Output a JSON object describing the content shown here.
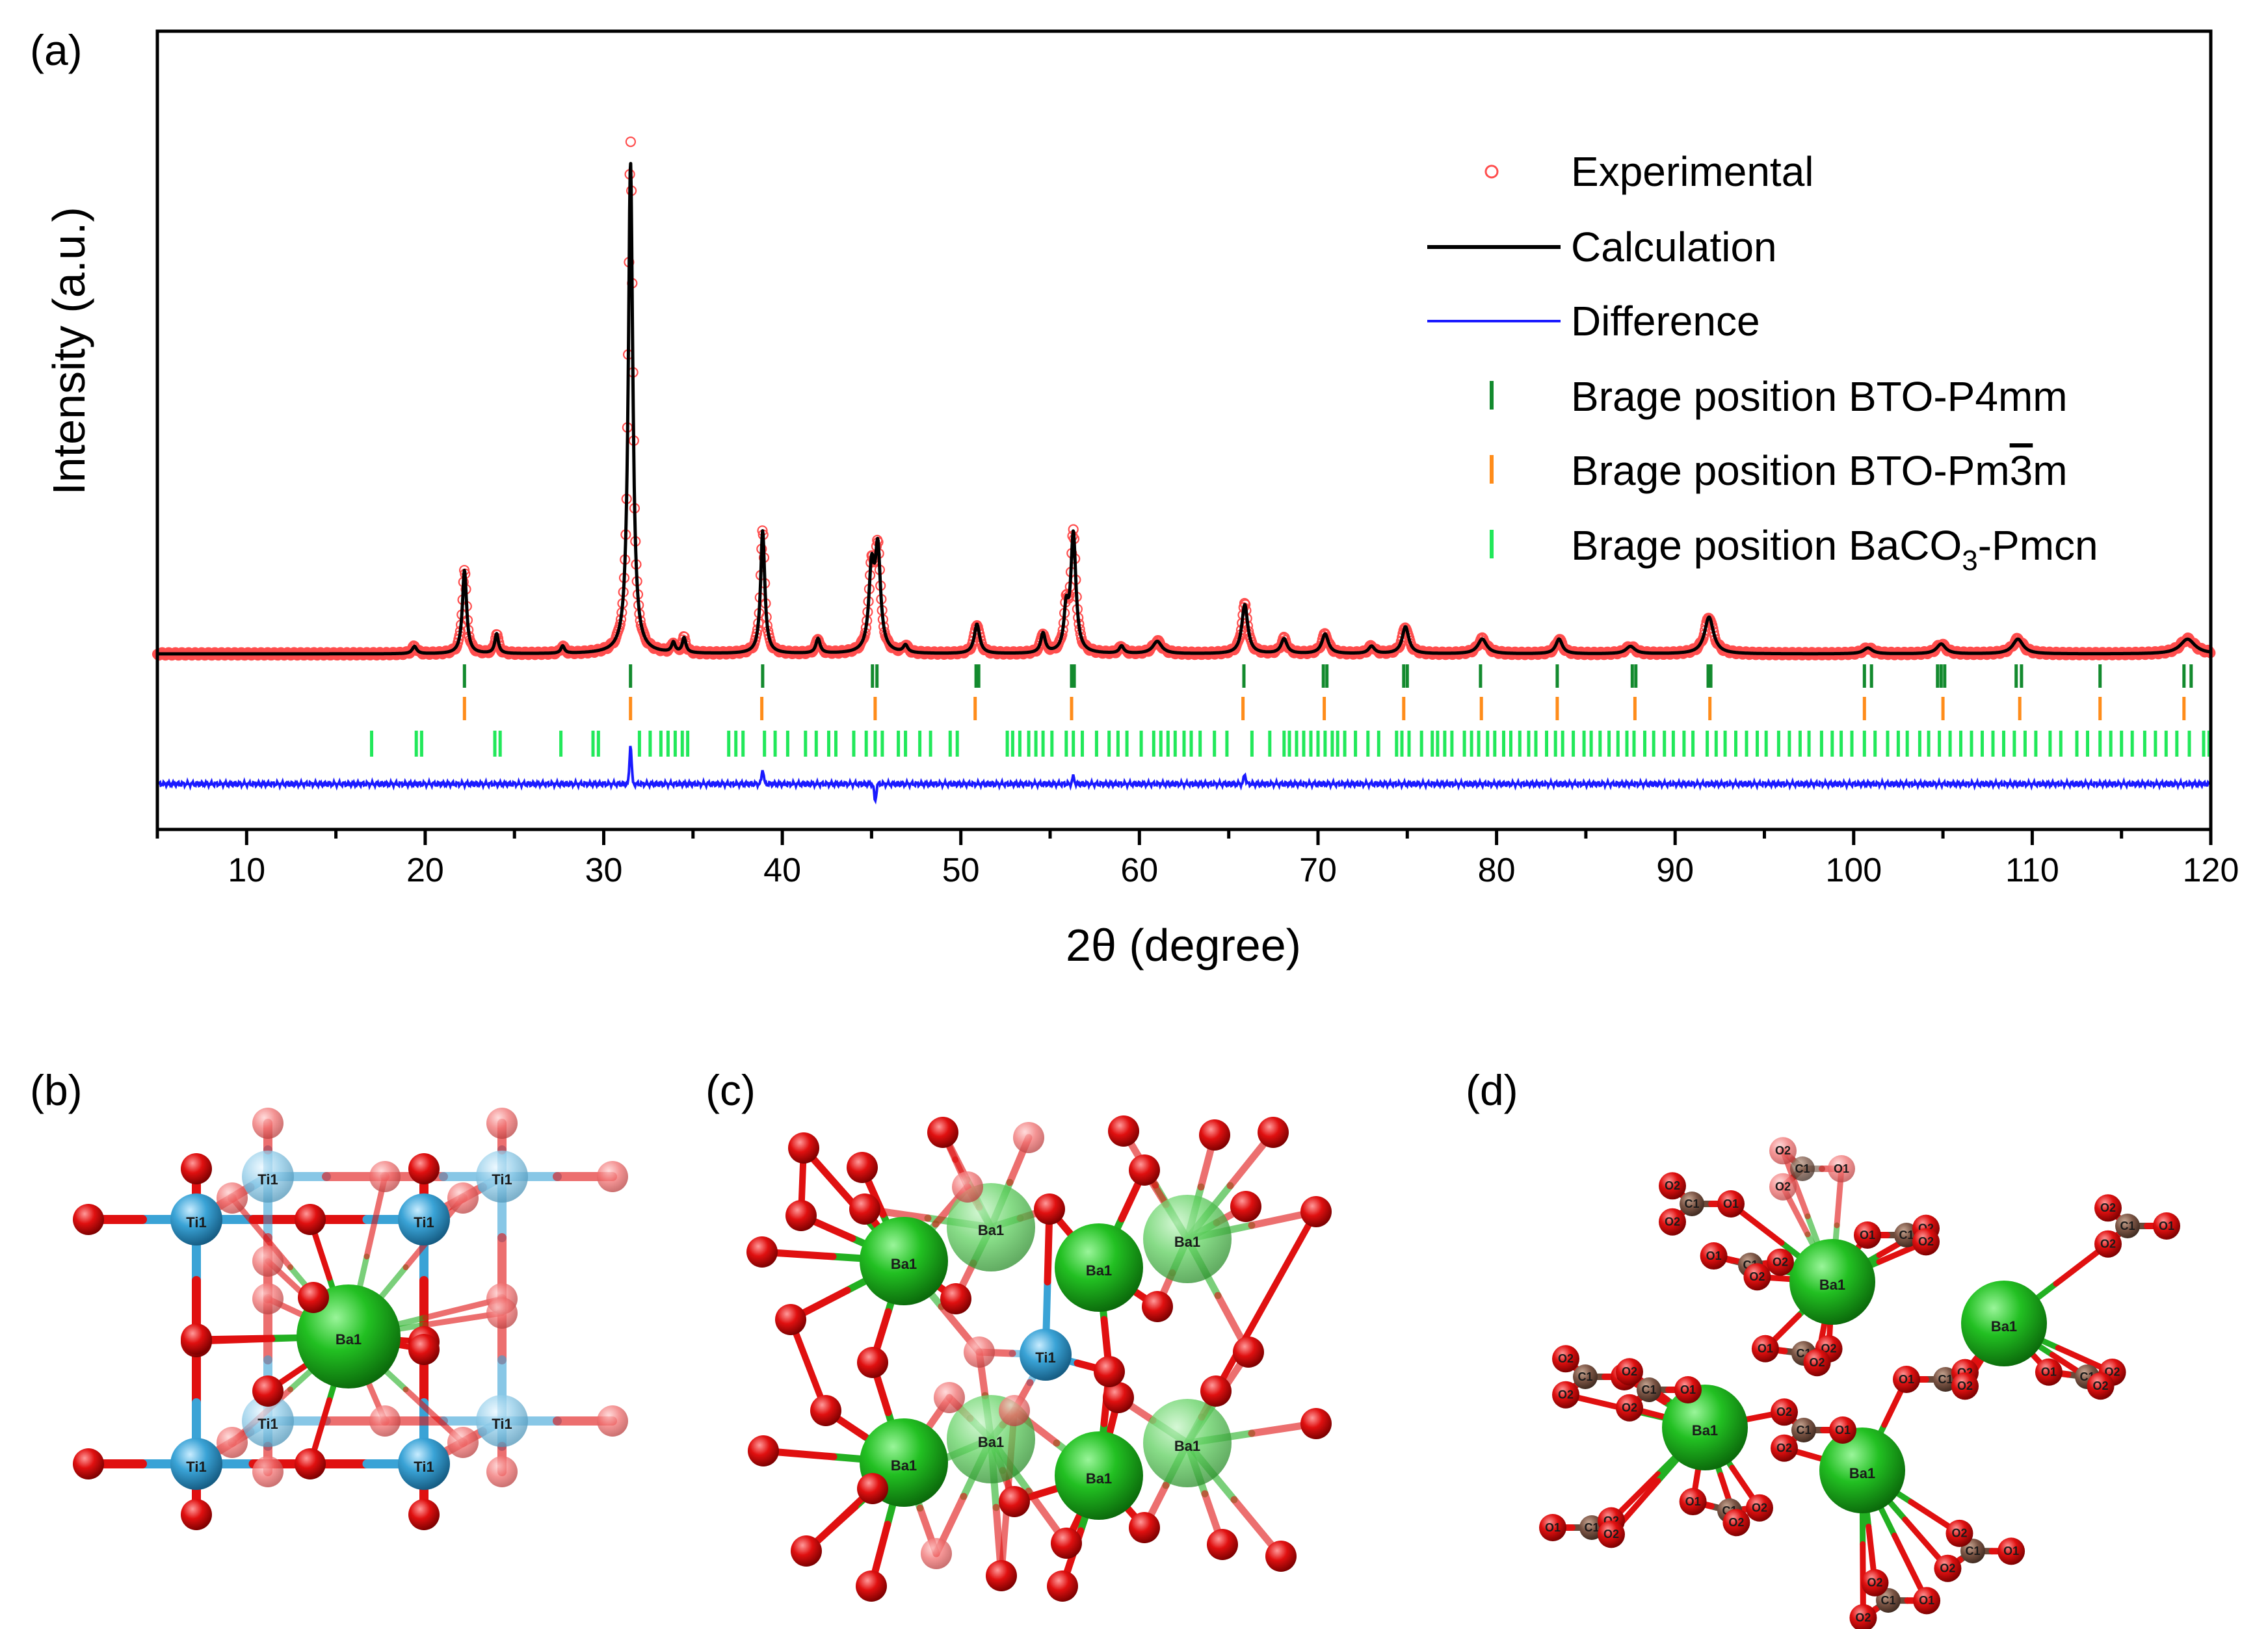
{
  "panels": {
    "a": "(a)",
    "b": "(b)",
    "c": "(c)",
    "d": "(d)"
  },
  "chart_data": {
    "type": "line",
    "title": "",
    "xlabel": "2θ (degree)",
    "ylabel": "Intensity (a.u.)",
    "xlim": [
      5,
      120
    ],
    "ylim": [
      -0.35,
      1.1
    ],
    "x_ticks": [
      10,
      20,
      30,
      40,
      50,
      60,
      70,
      80,
      90,
      100,
      110,
      120
    ],
    "x_tick_labels": [
      "10",
      "20",
      "30",
      "40",
      "50",
      "60",
      "70",
      "80",
      "90",
      "100",
      "110",
      "120"
    ],
    "legend_position": "top-right",
    "legend": [
      {
        "name": "Experimental",
        "marker": "open-circle",
        "color": "#ff4d4d"
      },
      {
        "name": "Calculation",
        "marker": "line",
        "color": "#000000"
      },
      {
        "name": "Difference",
        "marker": "line",
        "color": "#1a1aff"
      },
      {
        "name": "Brage position BTO-P4mm",
        "marker": "tick",
        "color": "#138a2e"
      },
      {
        "name": "Brage position BTO-Pm",
        "name_overline": "3",
        "name_suffix": "m",
        "marker": "tick",
        "color": "#ff8c1a"
      },
      {
        "name": "Brage position BaCO",
        "name_sub": "3",
        "name_suffix": "-Pmcn",
        "marker": "tick",
        "color": "#22e85a"
      }
    ],
    "peaks": [
      {
        "x": 19.4,
        "h": 0.015,
        "w": 0.15
      },
      {
        "x": 22.2,
        "h": 0.17,
        "w": 0.14
      },
      {
        "x": 24.0,
        "h": 0.04,
        "w": 0.12
      },
      {
        "x": 27.7,
        "h": 0.015,
        "w": 0.12
      },
      {
        "x": 31.5,
        "h": 1.0,
        "w": 0.15
      },
      {
        "x": 33.9,
        "h": 0.02,
        "w": 0.12
      },
      {
        "x": 34.5,
        "h": 0.03,
        "w": 0.12
      },
      {
        "x": 38.9,
        "h": 0.25,
        "w": 0.14
      },
      {
        "x": 42.0,
        "h": 0.03,
        "w": 0.14
      },
      {
        "x": 45.0,
        "h": 0.16,
        "w": 0.18
      },
      {
        "x": 45.35,
        "h": 0.2,
        "w": 0.18
      },
      {
        "x": 46.9,
        "h": 0.015,
        "w": 0.15
      },
      {
        "x": 50.9,
        "h": 0.06,
        "w": 0.18
      },
      {
        "x": 54.6,
        "h": 0.04,
        "w": 0.15
      },
      {
        "x": 55.9,
        "h": 0.08,
        "w": 0.15
      },
      {
        "x": 56.3,
        "h": 0.24,
        "w": 0.17
      },
      {
        "x": 59.0,
        "h": 0.015,
        "w": 0.15
      },
      {
        "x": 61.0,
        "h": 0.025,
        "w": 0.3
      },
      {
        "x": 65.9,
        "h": 0.1,
        "w": 0.2
      },
      {
        "x": 68.1,
        "h": 0.03,
        "w": 0.2
      },
      {
        "x": 70.4,
        "h": 0.04,
        "w": 0.22
      },
      {
        "x": 73.0,
        "h": 0.015,
        "w": 0.2
      },
      {
        "x": 74.9,
        "h": 0.055,
        "w": 0.22
      },
      {
        "x": 79.2,
        "h": 0.03,
        "w": 0.3
      },
      {
        "x": 83.5,
        "h": 0.03,
        "w": 0.22
      },
      {
        "x": 87.5,
        "h": 0.015,
        "w": 0.3
      },
      {
        "x": 91.9,
        "h": 0.075,
        "w": 0.3
      },
      {
        "x": 100.8,
        "h": 0.012,
        "w": 0.3
      },
      {
        "x": 104.9,
        "h": 0.02,
        "w": 0.3
      },
      {
        "x": 109.2,
        "h": 0.03,
        "w": 0.35
      },
      {
        "x": 118.7,
        "h": 0.03,
        "w": 0.5
      }
    ],
    "difference_peaks": [
      {
        "x": 31.5,
        "h": 0.08
      },
      {
        "x": 38.9,
        "h": 0.03
      },
      {
        "x": 45.2,
        "h": -0.035
      },
      {
        "x": 56.3,
        "h": 0.015
      },
      {
        "x": 65.9,
        "h": 0.02
      }
    ],
    "bragg_p4mm": [
      22.2,
      31.5,
      38.9,
      45.05,
      45.3,
      50.85,
      51.0,
      56.2,
      56.35,
      65.85,
      70.3,
      70.5,
      74.8,
      75.0,
      79.1,
      83.4,
      87.6,
      87.8,
      91.85,
      92.0,
      100.6,
      101.0,
      104.7,
      104.9,
      105.1,
      109.1,
      109.4,
      113.8,
      118.5,
      118.9
    ],
    "bragg_pm3m": [
      22.2,
      31.5,
      38.85,
      45.2,
      50.8,
      56.2,
      65.8,
      70.35,
      74.8,
      79.15,
      83.4,
      87.75,
      91.95,
      100.6,
      105.0,
      109.3,
      113.8,
      118.5
    ],
    "bragg_baco3": [
      17.0,
      19.5,
      19.8,
      23.9,
      24.2,
      27.6,
      29.4,
      29.7,
      32.0,
      32.6,
      33.2,
      33.6,
      34.0,
      34.4,
      34.7,
      37.0,
      37.4,
      37.8,
      39.0,
      39.6,
      40.3,
      41.3,
      41.9,
      42.6,
      43.0,
      44.0,
      44.7,
      45.2,
      45.6,
      46.5,
      46.9,
      47.7,
      48.3,
      49.4,
      49.8,
      52.6,
      52.9,
      53.3,
      53.8,
      54.2,
      54.6,
      55.1,
      55.9,
      56.3,
      56.8,
      57.6,
      58.3,
      58.8,
      59.3,
      60.1,
      60.8,
      61.2,
      61.6,
      62.0,
      62.5,
      62.9,
      63.4,
      64.2,
      64.9,
      66.3,
      67.3,
      68.1,
      68.4,
      68.8,
      69.2,
      69.6,
      70.0,
      70.4,
      70.8,
      71.1,
      71.5,
      72.1,
      72.8,
      73.4,
      74.4,
      74.7,
      75.1,
      75.8,
      76.4,
      76.7,
      77.1,
      77.5,
      78.2,
      78.6,
      79.0,
      79.5,
      79.9,
      80.4,
      80.8,
      81.3,
      81.8,
      82.2,
      82.8,
      83.3,
      83.7,
      84.3,
      84.9,
      85.3,
      85.8,
      86.3,
      86.8,
      87.3,
      87.7,
      88.3,
      88.8,
      89.4,
      89.9,
      90.5,
      91.0,
      91.8,
      92.3,
      92.8,
      93.4,
      94.0,
      94.6,
      95.1,
      95.8,
      96.4,
      97.0,
      97.5,
      98.2,
      98.8,
      99.3,
      99.9,
      100.6,
      101.2,
      101.9,
      102.5,
      103.0,
      103.7,
      104.2,
      104.8,
      105.4,
      106.0,
      106.6,
      107.2,
      107.8,
      108.4,
      109.0,
      109.6,
      110.2,
      111.0,
      111.6,
      112.5,
      113.1,
      113.8,
      114.4,
      115.0,
      115.6,
      116.3,
      116.9,
      117.5,
      118.1,
      118.8,
      119.6,
      119.9
    ]
  },
  "structures": {
    "b": {
      "labels": {
        "ti": "Ti1",
        "ba": "Ba1"
      }
    },
    "c": {
      "labels": {
        "ti": "Ti1",
        "ba": "Ba1"
      }
    },
    "d": {
      "labels": {
        "ba": "Ba1",
        "c": "C1",
        "o1": "O1",
        "o2": "O2"
      }
    }
  },
  "colors": {
    "experimental": "#ff4d4d",
    "calculation": "#000000",
    "difference": "#1a1aff",
    "p4mm": "#138a2e",
    "pm3m": "#ff8c1a",
    "baco3": "#22e85a",
    "oxygen": "#e01010",
    "titanium": "#3aa3d6",
    "barium": "#22b022",
    "carbon": "#6b4a3a"
  }
}
